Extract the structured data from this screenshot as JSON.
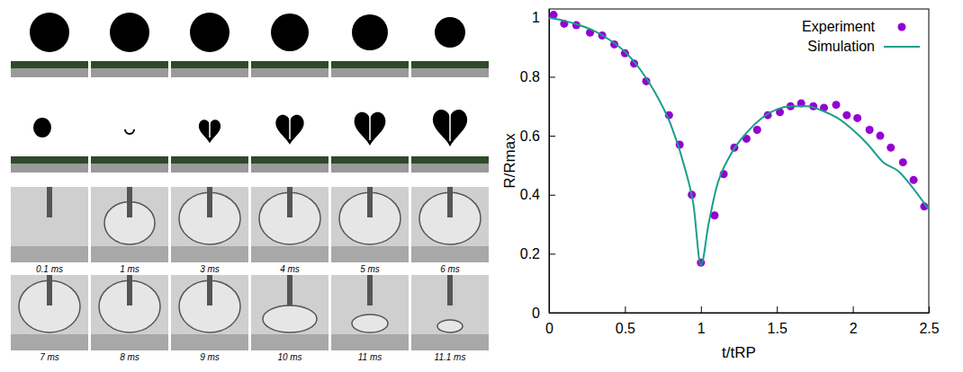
{
  "chart_data": {
    "type": "line",
    "xlabel": "t/tRP",
    "ylabel": "R/Rmax",
    "xlim": [
      0,
      2.5
    ],
    "ylim": [
      0,
      1.03
    ],
    "xticks": [
      0,
      0.5,
      1,
      1.5,
      2,
      2.5
    ],
    "yticks": [
      0,
      0.2,
      0.4,
      0.6,
      0.8,
      1
    ],
    "legend": "upper right",
    "grid": false,
    "series": [
      {
        "name": "Experiment",
        "type": "scatter",
        "marker": "circle",
        "color": "#9400d3",
        "x": [
          0.03,
          0.1,
          0.18,
          0.27,
          0.35,
          0.43,
          0.5,
          0.56,
          0.64,
          0.79,
          0.86,
          0.94,
          1.0,
          1.09,
          1.15,
          1.22,
          1.3,
          1.37,
          1.44,
          1.52,
          1.59,
          1.66,
          1.74,
          1.81,
          1.89,
          1.96,
          2.03,
          2.11,
          2.18,
          2.25,
          2.33,
          2.4,
          2.47
        ],
        "values": [
          1.01,
          0.98,
          0.975,
          0.95,
          0.94,
          0.91,
          0.88,
          0.845,
          0.785,
          0.67,
          0.57,
          0.4,
          0.17,
          0.33,
          0.47,
          0.56,
          0.59,
          0.62,
          0.67,
          0.68,
          0.7,
          0.71,
          0.7,
          0.695,
          0.705,
          0.67,
          0.66,
          0.62,
          0.6,
          0.56,
          0.51,
          0.45,
          0.36
        ]
      },
      {
        "name": "Simulation",
        "type": "line",
        "line_style": "solid",
        "color": "#1a9e8a",
        "x": [
          0,
          0.1,
          0.2,
          0.3,
          0.4,
          0.5,
          0.6,
          0.7,
          0.8,
          0.9,
          0.95,
          1.0,
          1.05,
          1.1,
          1.2,
          1.3,
          1.4,
          1.5,
          1.6,
          1.7,
          1.8,
          1.9,
          2.0,
          2.1,
          2.2,
          2.3,
          2.4,
          2.5
        ],
        "values": [
          1.0,
          0.99,
          0.975,
          0.955,
          0.925,
          0.885,
          0.825,
          0.745,
          0.64,
          0.48,
          0.37,
          0.16,
          0.3,
          0.42,
          0.54,
          0.61,
          0.66,
          0.69,
          0.7,
          0.7,
          0.685,
          0.66,
          0.62,
          0.57,
          0.51,
          0.48,
          0.42,
          0.35
        ]
      }
    ]
  },
  "image_panel": {
    "time_labels": [
      [
        "0.1 ms",
        "1 ms",
        "3 ms",
        "4 ms",
        "5 ms",
        "6 ms"
      ],
      [
        "7 ms",
        "8 ms",
        "9 ms",
        "10 ms",
        "11 ms",
        "11.1 ms"
      ]
    ]
  }
}
